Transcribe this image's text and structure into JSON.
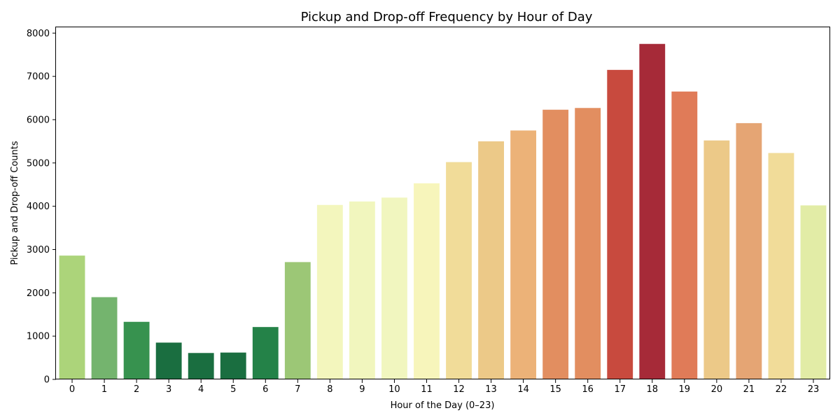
{
  "chart_data": {
    "type": "bar",
    "title": "Pickup and Drop-off Frequency by Hour of Day",
    "xlabel": "Hour of the Day (0–23)",
    "ylabel": "Pickup and Drop-off Counts",
    "categories": [
      "0",
      "1",
      "2",
      "3",
      "4",
      "5",
      "6",
      "7",
      "8",
      "9",
      "10",
      "11",
      "12",
      "13",
      "14",
      "15",
      "16",
      "17",
      "18",
      "19",
      "20",
      "21",
      "22",
      "23"
    ],
    "values": [
      2860,
      1900,
      1330,
      850,
      610,
      620,
      1210,
      2710,
      4030,
      4110,
      4200,
      4530,
      5020,
      5500,
      5750,
      6230,
      6270,
      7150,
      7750,
      6650,
      5520,
      5920,
      5230,
      4020
    ],
    "colors": [
      "#acd47a",
      "#74b46e",
      "#37924f",
      "#1a6e40",
      "#1a6e40",
      "#1a6e40",
      "#248248",
      "#9cc776",
      "#f3f6bd",
      "#f1f6be",
      "#f1f6bf",
      "#f7f5bb",
      "#f1dc99",
      "#ecc988",
      "#ecb278",
      "#e28e60",
      "#e28e60",
      "#c84a3e",
      "#a62a38",
      "#e07b58",
      "#ecc988",
      "#e5a574",
      "#f1dc99",
      "#e2eca6"
    ],
    "yticks": [
      0,
      1000,
      2000,
      3000,
      4000,
      5000,
      6000,
      7000,
      8000
    ],
    "ylim": [
      0,
      8150
    ],
    "grid": false
  }
}
